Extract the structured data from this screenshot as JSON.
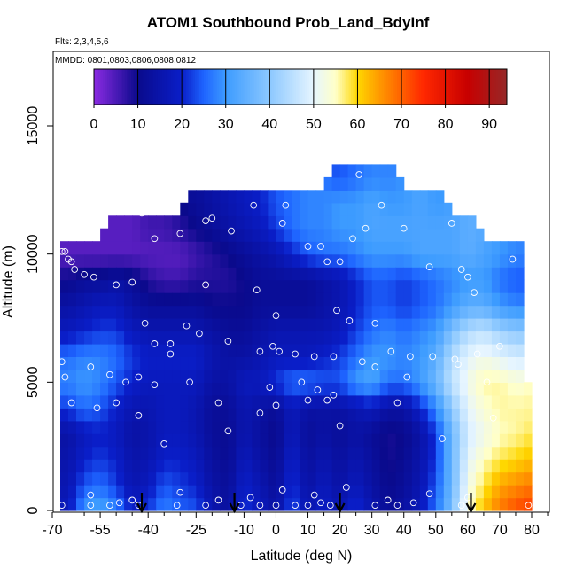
{
  "chart_data": {
    "type": "heatmap",
    "title": "ATOM1 Southbound Prob_Land_BdyInf",
    "subtitle_flights": "Flts: 2,3,4,5,6",
    "subtitle_dates": "MMDD: 0801,0803,0806,0808,0812",
    "xlabel": "Latitude (deg N)",
    "ylabel": "Altitude (m)",
    "xlim": [
      -70,
      85
    ],
    "ylim": [
      0,
      17500
    ],
    "x_ticks": [
      -70,
      -55,
      -40,
      -25,
      -10,
      0,
      10,
      20,
      30,
      40,
      50,
      60,
      70,
      80
    ],
    "x_tick_labels": [
      "-70",
      "-55",
      "-40",
      "-25",
      "-10",
      "0",
      "10",
      "20",
      "30",
      "40",
      "50",
      "60",
      "70",
      "80"
    ],
    "x_minor_ticks": [
      -60,
      -50,
      -45,
      -35,
      -30,
      -20,
      -15,
      -5,
      5,
      15,
      25,
      35,
      45,
      55,
      65,
      75,
      85
    ],
    "y_ticks": [
      0,
      5000,
      10000,
      15000
    ],
    "y_tick_labels": [
      "0",
      "5000",
      "10000",
      "15000"
    ],
    "colorbar": {
      "min": 0,
      "max": 94,
      "ticks": [
        0,
        10,
        20,
        30,
        40,
        50,
        60,
        70,
        80,
        90
      ],
      "tick_labels": [
        "0",
        "10",
        "20",
        "30",
        "40",
        "50",
        "60",
        "70",
        "80",
        "90"
      ],
      "colors": [
        "#8b2be2",
        "#0a0a8c",
        "#0a1ec8",
        "#1e64ff",
        "#3c9bff",
        "#8cc8ff",
        "#e6f5ff",
        "#ffffc8",
        "#ffd700",
        "#ff9900",
        "#ff2800",
        "#c80000",
        "#962828"
      ],
      "color_stops": [
        0,
        10,
        20,
        25,
        30,
        40,
        50,
        55,
        60,
        65,
        75,
        85,
        94
      ]
    },
    "arrows_latitude": [
      -42,
      -13,
      20,
      61
    ],
    "grid": {
      "x": [
        -70,
        -65,
        -60,
        -55,
        -50,
        -45,
        -40,
        -35,
        -30,
        -25,
        -20,
        -15,
        -10,
        -5,
        0,
        5,
        10,
        15,
        20,
        25,
        30,
        35,
        40,
        45,
        50,
        55,
        60,
        65,
        70,
        75,
        80
      ],
      "y": [
        0,
        1000,
        2000,
        3000,
        4000,
        5000,
        6000,
        7000,
        8000,
        9000,
        10000,
        11000,
        12000,
        13000
      ],
      "z": [
        [
          null,
          18,
          30,
          32,
          28,
          20,
          22,
          28,
          25,
          24,
          16,
          13,
          22,
          18,
          14,
          24,
          16,
          20,
          16,
          22,
          16,
          12,
          14,
          18,
          26,
          38,
          54,
          62,
          68,
          72,
          74
        ],
        [
          null,
          16,
          24,
          26,
          22,
          16,
          18,
          24,
          22,
          20,
          14,
          12,
          20,
          16,
          12,
          22,
          14,
          18,
          14,
          18,
          14,
          10,
          12,
          16,
          24,
          36,
          52,
          58,
          64,
          66,
          68
        ],
        [
          null,
          15,
          20,
          22,
          20,
          15,
          16,
          20,
          20,
          18,
          13,
          11,
          18,
          14,
          11,
          20,
          13,
          16,
          13,
          16,
          13,
          9,
          11,
          15,
          22,
          36,
          50,
          55,
          58,
          60,
          62
        ],
        [
          null,
          14,
          18,
          20,
          18,
          14,
          15,
          18,
          18,
          16,
          12,
          11,
          16,
          13,
          10,
          18,
          12,
          14,
          12,
          14,
          12,
          9,
          10,
          14,
          22,
          36,
          48,
          52,
          55,
          56,
          58
        ],
        [
          null,
          22,
          26,
          24,
          20,
          16,
          16,
          18,
          18,
          16,
          12,
          12,
          16,
          14,
          12,
          18,
          14,
          14,
          14,
          16,
          18,
          14,
          14,
          20,
          28,
          40,
          50,
          54,
          56,
          56,
          56
        ],
        [
          null,
          28,
          30,
          28,
          24,
          20,
          18,
          18,
          18,
          18,
          14,
          14,
          18,
          18,
          22,
          26,
          26,
          24,
          24,
          30,
          32,
          26,
          26,
          30,
          36,
          46,
          52,
          56,
          56,
          54,
          null
        ],
        [
          null,
          26,
          28,
          28,
          26,
          22,
          20,
          20,
          20,
          20,
          16,
          14,
          14,
          16,
          18,
          18,
          18,
          20,
          22,
          26,
          30,
          30,
          28,
          30,
          34,
          44,
          50,
          52,
          50,
          48,
          null
        ],
        [
          null,
          18,
          20,
          22,
          22,
          18,
          16,
          16,
          16,
          16,
          14,
          12,
          12,
          14,
          16,
          16,
          16,
          16,
          18,
          22,
          26,
          28,
          26,
          28,
          30,
          38,
          44,
          46,
          42,
          40,
          null
        ],
        [
          null,
          14,
          16,
          18,
          18,
          14,
          12,
          12,
          12,
          12,
          10,
          10,
          10,
          12,
          12,
          12,
          12,
          14,
          16,
          20,
          24,
          24,
          22,
          24,
          26,
          30,
          34,
          34,
          30,
          28,
          null
        ],
        [
          null,
          10,
          12,
          12,
          14,
          12,
          8,
          6,
          6,
          8,
          8,
          8,
          10,
          12,
          12,
          12,
          12,
          14,
          16,
          20,
          24,
          24,
          22,
          24,
          26,
          28,
          30,
          30,
          26,
          24,
          null
        ],
        [
          null,
          4,
          4,
          4,
          4,
          4,
          4,
          4,
          4,
          6,
          8,
          10,
          12,
          14,
          16,
          20,
          24,
          26,
          26,
          28,
          30,
          30,
          30,
          32,
          32,
          32,
          34,
          32,
          30,
          28,
          null
        ],
        [
          null,
          null,
          null,
          null,
          4,
          4,
          6,
          6,
          8,
          10,
          12,
          14,
          16,
          18,
          22,
          26,
          28,
          28,
          30,
          30,
          32,
          32,
          32,
          32,
          32,
          32,
          34,
          null,
          null,
          null,
          null
        ],
        [
          null,
          null,
          null,
          null,
          null,
          null,
          null,
          null,
          null,
          12,
          14,
          16,
          18,
          20,
          24,
          26,
          28,
          28,
          30,
          30,
          32,
          30,
          30,
          32,
          30,
          null,
          null,
          null,
          null,
          null,
          null
        ],
        [
          null,
          null,
          null,
          null,
          null,
          null,
          null,
          null,
          null,
          null,
          null,
          null,
          null,
          null,
          null,
          null,
          null,
          null,
          24,
          26,
          28,
          28,
          null,
          null,
          null,
          null,
          null,
          null,
          null,
          null,
          null
        ]
      ]
    },
    "points": [
      [
        -67,
        200
      ],
      [
        -58,
        200
      ],
      [
        -52,
        200
      ],
      [
        -49,
        300
      ],
      [
        -43,
        200
      ],
      [
        -31,
        200
      ],
      [
        -22,
        200
      ],
      [
        -11,
        200
      ],
      [
        -5,
        200
      ],
      [
        0,
        200
      ],
      [
        6,
        200
      ],
      [
        10,
        200
      ],
      [
        14,
        300
      ],
      [
        17,
        200
      ],
      [
        31,
        200
      ],
      [
        38,
        200
      ],
      [
        43,
        300
      ],
      [
        58,
        200
      ],
      [
        79,
        200
      ],
      [
        -58,
        600
      ],
      [
        -45,
        400
      ],
      [
        -30,
        700
      ],
      [
        -18,
        400
      ],
      [
        -8,
        500
      ],
      [
        2,
        800
      ],
      [
        12,
        600
      ],
      [
        22,
        900
      ],
      [
        35,
        400
      ],
      [
        48,
        650
      ],
      [
        60,
        500
      ],
      [
        -35,
        2600
      ],
      [
        -15,
        3100
      ],
      [
        -5,
        3800
      ],
      [
        0,
        4100
      ],
      [
        10,
        4300
      ],
      [
        20,
        3300
      ],
      [
        38,
        4200
      ],
      [
        52,
        2800
      ],
      [
        68,
        3600
      ],
      [
        -64,
        4200
      ],
      [
        -56,
        4000
      ],
      [
        -50,
        4200
      ],
      [
        -43,
        3700
      ],
      [
        -27,
        5000
      ],
      [
        -18,
        4200
      ],
      [
        -2,
        4800
      ],
      [
        8,
        5000
      ],
      [
        13,
        4700
      ],
      [
        16,
        4300
      ],
      [
        18,
        4500
      ],
      [
        31,
        5600
      ],
      [
        41,
        5200
      ],
      [
        57,
        5700
      ],
      [
        66,
        5000
      ],
      [
        -67,
        5800
      ],
      [
        -66,
        5200
      ],
      [
        -58,
        5600
      ],
      [
        -52,
        5300
      ],
      [
        -47,
        5000
      ],
      [
        -43,
        5200
      ],
      [
        -38,
        4900
      ],
      [
        -33,
        6100
      ],
      [
        -24,
        6900
      ],
      [
        -15,
        6600
      ],
      [
        -5,
        6200
      ],
      [
        -1,
        6400
      ],
      [
        1,
        6200
      ],
      [
        6,
        6100
      ],
      [
        12,
        6000
      ],
      [
        18,
        6000
      ],
      [
        27,
        5800
      ],
      [
        36,
        6200
      ],
      [
        42,
        6000
      ],
      [
        49,
        6000
      ],
      [
        56,
        5900
      ],
      [
        63,
        6100
      ],
      [
        70,
        6400
      ],
      [
        -45,
        8900
      ],
      [
        -50,
        8800
      ],
      [
        -57,
        9100
      ],
      [
        -60,
        9200
      ],
      [
        -63,
        9400
      ],
      [
        -64,
        9700
      ],
      [
        -65,
        9800
      ],
      [
        -66,
        10100
      ],
      [
        -67,
        10100
      ],
      [
        -41,
        7300
      ],
      [
        -38,
        6500
      ],
      [
        -33,
        6500
      ],
      [
        -28,
        7200
      ],
      [
        -22,
        8800
      ],
      [
        -6,
        8600
      ],
      [
        0,
        7600
      ],
      [
        19,
        7800
      ],
      [
        23,
        7400
      ],
      [
        31,
        7300
      ],
      [
        48,
        9500
      ],
      [
        58,
        9400
      ],
      [
        60,
        9100
      ],
      [
        62,
        8500
      ],
      [
        74,
        9800
      ],
      [
        -42,
        11600
      ],
      [
        -38,
        10600
      ],
      [
        -30,
        10800
      ],
      [
        -22,
        11300
      ],
      [
        -20,
        11400
      ],
      [
        -14,
        10900
      ],
      [
        -7,
        11900
      ],
      [
        3,
        11900
      ],
      [
        2,
        11200
      ],
      [
        10,
        10300
      ],
      [
        14,
        10300
      ],
      [
        16,
        9700
      ],
      [
        20,
        9700
      ],
      [
        24,
        10600
      ],
      [
        28,
        11000
      ],
      [
        33,
        11900
      ],
      [
        40,
        11000
      ],
      [
        55,
        11200
      ],
      [
        68,
        11300
      ],
      [
        26,
        13100
      ]
    ]
  }
}
